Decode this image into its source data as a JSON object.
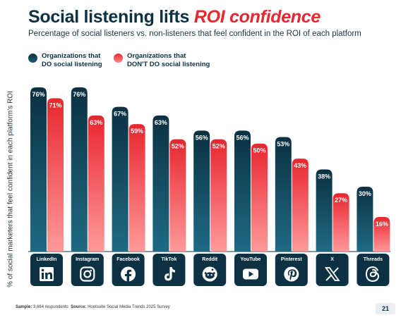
{
  "header": {
    "title_main": "Social listening lifts ",
    "title_accent": "ROI confidence",
    "subtitle": "Percentage of social listeners vs. non-listeners that feel confident in the ROI of each platform"
  },
  "colors": {
    "dark": "#0b3142",
    "dark_mid": "#1d5e76",
    "red": "#e8262f",
    "red_light": "#ff8a8a",
    "baseline": "#0b3142"
  },
  "chart_data": {
    "type": "bar",
    "title": "Social listening lifts ROI confidence",
    "subtitle": "Percentage of social listeners vs. non-listeners that feel confident in the ROI of each platform",
    "xlabel": "",
    "ylabel": "% of social marketers that feel confident in each platform's ROI",
    "ylim": [
      0,
      80
    ],
    "grid": false,
    "legend_position": "top-left",
    "categories": [
      "LinkedIn",
      "Instagram",
      "Facebook",
      "TikTok",
      "Reddit",
      "YouTube",
      "Pinterest",
      "X",
      "Threads"
    ],
    "icons": [
      "linkedin-icon",
      "instagram-icon",
      "facebook-icon",
      "tiktok-icon",
      "reddit-icon",
      "youtube-icon",
      "pinterest-icon",
      "x-icon",
      "threads-icon"
    ],
    "series": [
      {
        "name": "Organizations that DO social listening",
        "legend_line1": "Organizations that",
        "legend_line2": "DO social listening",
        "values": [
          76,
          76,
          67,
          63,
          56,
          56,
          53,
          38,
          30
        ],
        "labels": [
          "76%",
          "76%",
          "67%",
          "63%",
          "56%",
          "56%",
          "53%",
          "38%",
          "30%"
        ]
      },
      {
        "name": "Organizations that DON'T DO social listening",
        "legend_line1": "Organizations that",
        "legend_line2": "DON'T DO social listening",
        "values": [
          71,
          63,
          59,
          52,
          52,
          50,
          43,
          27,
          16
        ],
        "labels": [
          "71%",
          "63%",
          "59%",
          "52%",
          "52%",
          "50%",
          "43%",
          "27%",
          "16%"
        ]
      }
    ]
  },
  "footer": {
    "sample_label": "Sample:",
    "sample_value": " 3,664 respondents",
    "source_label": "Source:",
    "source_value": " Hootsuite Social Media Trends 2025 Survey"
  },
  "page": {
    "number": "21"
  }
}
